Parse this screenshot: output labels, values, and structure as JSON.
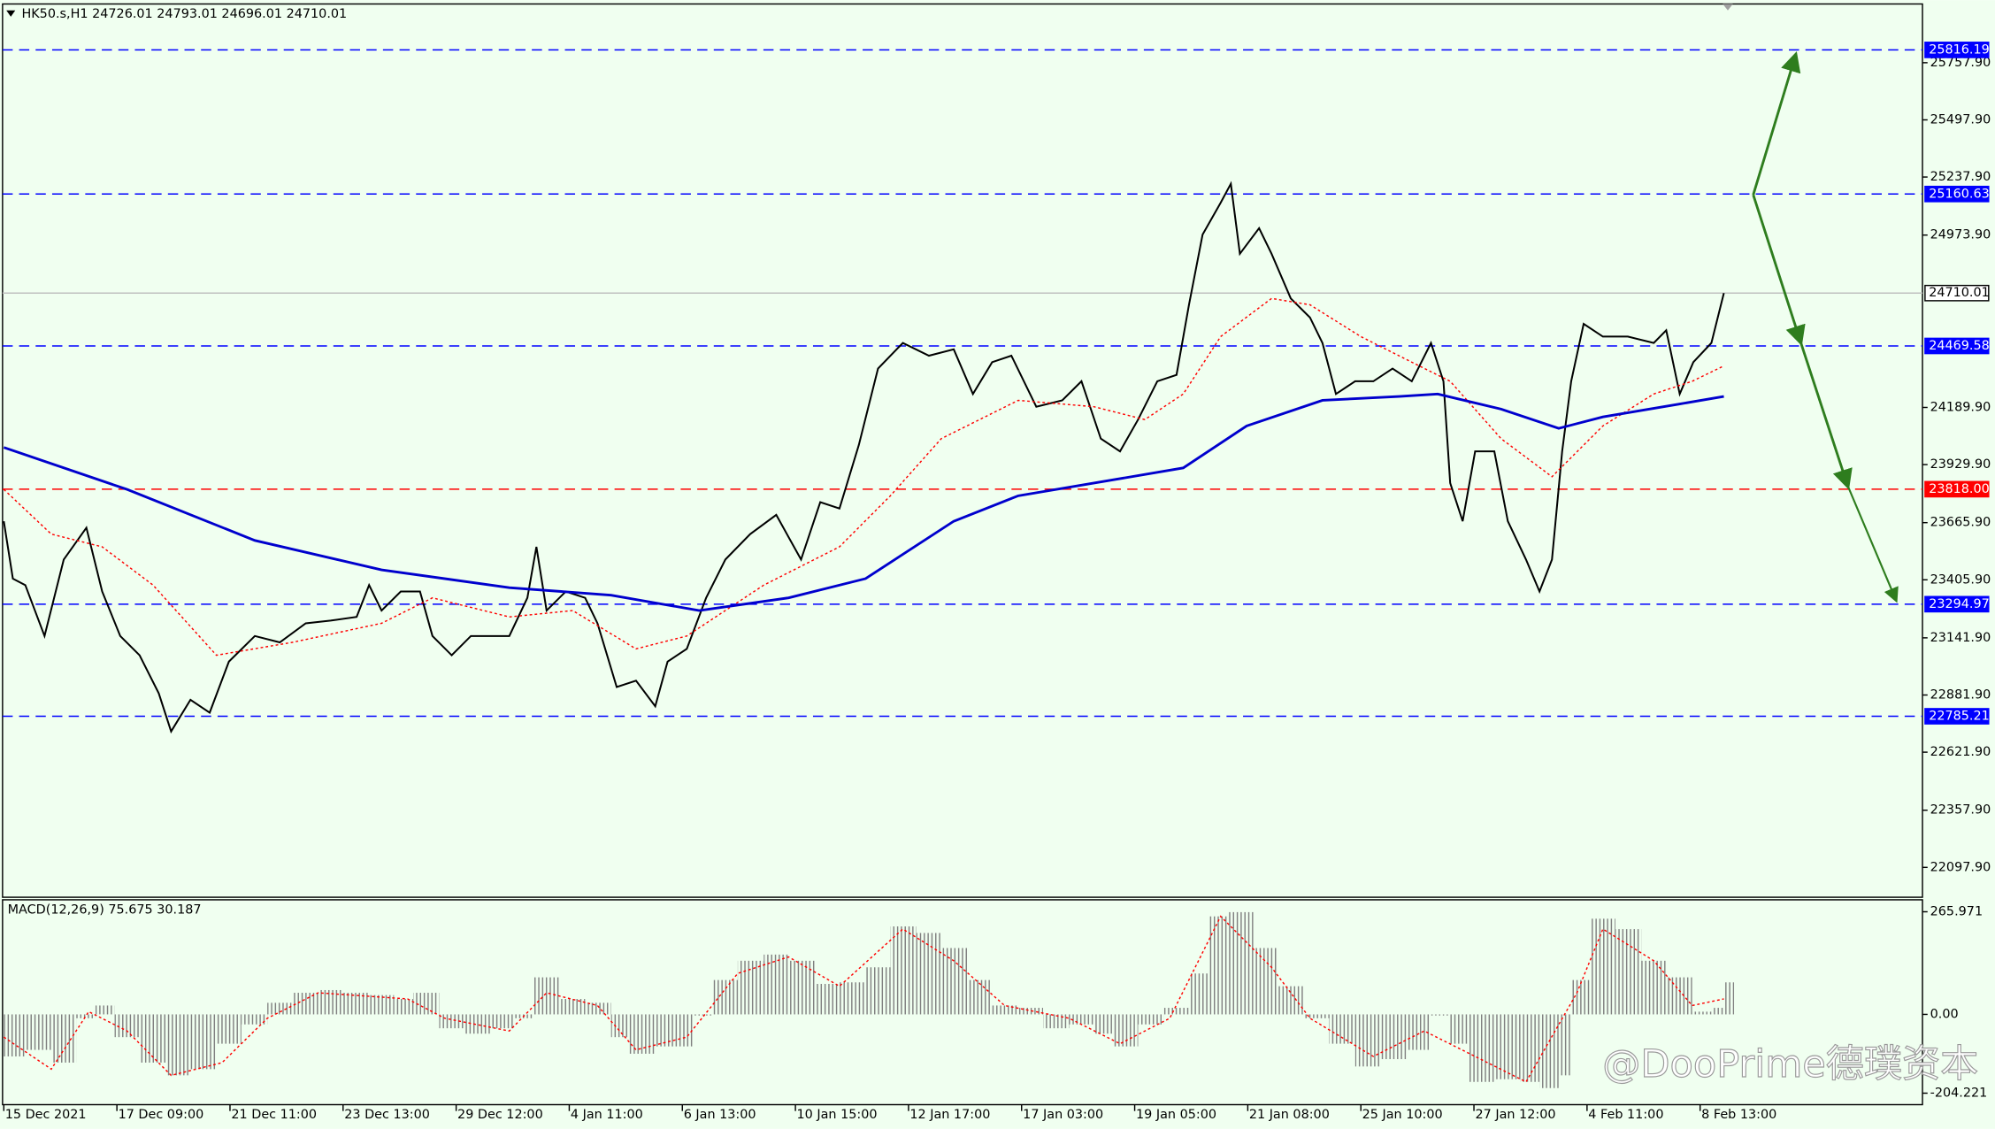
{
  "chart_data": [
    {
      "type": "line",
      "title": "HK50.s,H1  24726.01 24793.01 24696.01 24710.01",
      "xlim": [
        0,
        17
      ],
      "xticks": [
        {
          "value": 0,
          "label": "15 Dec 2021"
        },
        {
          "value": 1,
          "label": "17 Dec 09:00"
        },
        {
          "value": 2,
          "label": "21 Dec 11:00"
        },
        {
          "value": 3,
          "label": "23 Dec 13:00"
        },
        {
          "value": 4,
          "label": "29 Dec 12:00"
        },
        {
          "value": 5,
          "label": "4 Jan 11:00"
        },
        {
          "value": 6,
          "label": "6 Jan 13:00"
        },
        {
          "value": 7,
          "label": "10 Jan 15:00"
        },
        {
          "value": 8,
          "label": "12 Jan 17:00"
        },
        {
          "value": 9,
          "label": "17 Jan 03:00"
        },
        {
          "value": 10,
          "label": "19 Jan 05:00"
        },
        {
          "value": 11,
          "label": "21 Jan 08:00"
        },
        {
          "value": 12,
          "label": "25 Jan 10:00"
        },
        {
          "value": 13,
          "label": "27 Jan 12:00"
        },
        {
          "value": 14,
          "label": "4 Feb 11:00"
        },
        {
          "value": 15,
          "label": "8 Feb 13:00"
        }
      ],
      "ylim": [
        21962,
        26025
      ],
      "yticks": [
        {
          "value": 25757.9,
          "label": "25757.90"
        },
        {
          "value": 25497.9,
          "label": "25497.90"
        },
        {
          "value": 25237.9,
          "label": "25237.90"
        },
        {
          "value": 24973.9,
          "label": "24973.90"
        },
        {
          "value": 24189.9,
          "label": "24189.90"
        },
        {
          "value": 23929.9,
          "label": "23929.90"
        },
        {
          "value": 23665.9,
          "label": "23665.90"
        },
        {
          "value": 23405.9,
          "label": "23405.90"
        },
        {
          "value": 23141.9,
          "label": "23141.90"
        },
        {
          "value": 22881.9,
          "label": "22881.90"
        },
        {
          "value": 22621.9,
          "label": "22621.90"
        },
        {
          "value": 22357.9,
          "label": "22357.90"
        },
        {
          "value": 22097.9,
          "label": "22097.90"
        }
      ],
      "levels": [
        {
          "value": 25816.19,
          "color": "#0000ff",
          "style": "dashed"
        },
        {
          "value": 25160.63,
          "color": "#0000ff",
          "style": "dashed"
        },
        {
          "value": 24710.01,
          "color": "#c0c0c0",
          "style": "solid"
        },
        {
          "value": 24469.58,
          "color": "#0000ff",
          "style": "dashed"
        },
        {
          "value": 23818,
          "label": "23818.00",
          "color": "#ff0000",
          "style": "dashed"
        },
        {
          "value": 23294.97,
          "color": "#0000ff",
          "style": "dashed"
        },
        {
          "value": 22785.21,
          "color": "#0000ff",
          "style": "dashed"
        }
      ],
      "series": [
        {
          "color": "#000000",
          "style": "solid",
          "width": 1.4,
          "x": [
            0,
            0.08,
            0.19,
            0.36,
            0.53,
            0.73,
            0.87,
            1.03,
            1.2,
            1.37,
            1.48,
            1.65,
            1.82,
            1.99,
            2.22,
            2.44,
            2.67,
            2.89,
            3.12,
            3.23,
            3.34,
            3.51,
            3.68,
            3.79,
            3.96,
            4.13,
            4.3,
            4.47,
            4.63,
            4.71,
            4.8,
            4.97,
            5.14,
            5.25,
            5.42,
            5.59,
            5.76,
            5.87,
            6.04,
            6.21,
            6.38,
            6.6,
            6.83,
            7.05,
            7.22,
            7.39,
            7.56,
            7.73,
            7.95,
            8.18,
            8.4,
            8.57,
            8.74,
            8.91,
            9.13,
            9.36,
            9.53,
            9.7,
            9.87,
            10.03,
            10.2,
            10.37,
            10.48,
            10.6,
            10.76,
            10.85,
            10.93,
            11.1,
            11.21,
            11.38,
            11.55,
            11.66,
            11.78,
            11.95,
            12.11,
            12.28,
            12.45,
            12.62,
            12.73,
            12.79,
            12.9,
            13.01,
            13.18,
            13.3,
            13.46,
            13.58,
            13.69,
            13.78,
            13.86,
            13.97,
            14.14,
            14.36,
            14.59,
            14.7,
            14.82,
            14.94,
            15.1,
            15.21
          ],
          "values": [
            23672,
            23411,
            23382,
            23150,
            23498,
            23643,
            23353,
            23150,
            23063,
            22889,
            22716,
            22860,
            22802,
            23034,
            23150,
            23121,
            23208,
            23220,
            23237,
            23382,
            23266,
            23353,
            23353,
            23150,
            23063,
            23150,
            23150,
            23150,
            23324,
            23556,
            23266,
            23353,
            23324,
            23208,
            22918,
            22947,
            22831,
            23034,
            23092,
            23324,
            23498,
            23614,
            23701,
            23498,
            23759,
            23730,
            24019,
            24367,
            24483,
            24425,
            24454,
            24251,
            24396,
            24425,
            24193,
            24222,
            24309,
            24048,
            23990,
            24135,
            24309,
            24338,
            24657,
            24976,
            25121,
            25207,
            24889,
            25005,
            24889,
            24686,
            24599,
            24483,
            24251,
            24309,
            24309,
            24367,
            24309,
            24483,
            24309,
            23846,
            23672,
            23990,
            23990,
            23672,
            23498,
            23353,
            23498,
            23990,
            24309,
            24570,
            24512,
            24512,
            24483,
            24541,
            24251,
            24396,
            24483,
            24710
          ]
        },
        {
          "color": "#ff0000",
          "style": "dotted",
          "width": 1,
          "x": [
            0,
            0.42,
            0.87,
            1.32,
            1.88,
            2.55,
            3.34,
            3.79,
            4.47,
            5.03,
            5.59,
            6.04,
            6.72,
            7.39,
            7.84,
            8.29,
            8.97,
            9.64,
            10.09,
            10.43,
            10.76,
            11.21,
            11.55,
            12,
            12.45,
            12.79,
            13.24,
            13.69,
            14.14,
            14.59,
            14.93,
            15.21
          ],
          "values": [
            23817,
            23614,
            23556,
            23382,
            23063,
            23121,
            23208,
            23324,
            23237,
            23266,
            23092,
            23150,
            23382,
            23556,
            23788,
            24048,
            24222,
            24193,
            24135,
            24251,
            24512,
            24686,
            24657,
            24512,
            24396,
            24309,
            24048,
            23875,
            24106,
            24251,
            24309,
            24379
          ]
        },
        {
          "color": "#0000cd",
          "style": "solid",
          "width": 2,
          "x": [
            0,
            1.09,
            2.22,
            3.34,
            4.47,
            5.37,
            6.15,
            6.94,
            7.62,
            8.4,
            8.97,
            9.64,
            10.43,
            10.99,
            11.66,
            12.34,
            12.68,
            13.24,
            13.75,
            14.14,
            14.81,
            15.21
          ],
          "values": [
            24008,
            23817,
            23585,
            23451,
            23370,
            23336,
            23266,
            23324,
            23411,
            23672,
            23788,
            23846,
            23915,
            24106,
            24222,
            24240,
            24251,
            24182,
            24095,
            24147,
            24205,
            24240
          ]
        }
      ]
    },
    {
      "type": "bar",
      "title": "MACD(12,26,9) 75.675 30.187",
      "xlim": [
        0,
        17
      ],
      "ylim": [
        -234,
        297
      ],
      "yticks": [
        265.971,
        {
          "value": 0,
          "label": "0.00"
        },
        -204.221
      ],
      "series": [
        {
          "color": "#808080",
          "style": "histogram",
          "x": [
            0,
            0.19,
            0.42,
            0.64,
            0.81,
            0.98,
            1.2,
            1.43,
            1.65,
            1.88,
            2.1,
            2.33,
            2.55,
            2.78,
            3,
            3.23,
            3.45,
            3.62,
            3.85,
            4.07,
            4.3,
            4.52,
            4.69,
            4.92,
            5.14,
            5.37,
            5.53,
            5.76,
            5.93,
            6.1,
            6.27,
            6.49,
            6.72,
            6.94,
            7.17,
            7.39,
            7.62,
            7.84,
            8.07,
            8.29,
            8.52,
            8.74,
            8.97,
            9.19,
            9.42,
            9.64,
            9.81,
            10.03,
            10.26,
            10.48,
            10.65,
            10.82,
            11.05,
            11.27,
            11.5,
            11.72,
            11.95,
            12.17,
            12.4,
            12.62,
            12.79,
            12.96,
            13.18,
            13.41,
            13.58,
            13.75,
            13.86,
            14.03,
            14.25,
            14.48,
            14.7,
            14.93,
            15.1,
            15.21
          ],
          "values": [
            -109,
            -92,
            -125,
            -10,
            23,
            -59,
            -125,
            -158,
            -142,
            -76,
            -26,
            30,
            56,
            63,
            56,
            50,
            40,
            56,
            -36,
            -50,
            -36,
            -10,
            96,
            40,
            30,
            -59,
            -102,
            -83,
            -83,
            -3,
            89,
            139,
            155,
            139,
            79,
            83,
            122,
            228,
            211,
            172,
            89,
            23,
            17,
            -36,
            -26,
            -50,
            -83,
            -26,
            17,
            106,
            254,
            265,
            172,
            73,
            -10,
            -76,
            -135,
            -116,
            -92,
            -3,
            -76,
            -175,
            -168,
            -175,
            -191,
            -158,
            89,
            248,
            221,
            139,
            96,
            7,
            17,
            83
          ]
        },
        {
          "color": "#ff0000",
          "style": "dotted",
          "width": 1,
          "x": [
            0,
            0.42,
            0.75,
            1.09,
            1.48,
            1.93,
            2.33,
            2.78,
            3.57,
            3.9,
            4.47,
            4.8,
            5.25,
            5.59,
            6.04,
            6.49,
            6.94,
            7.39,
            7.95,
            8.4,
            8.85,
            9.42,
            9.87,
            10.31,
            10.76,
            11.21,
            11.55,
            12.11,
            12.56,
            13.01,
            13.46,
            13.91,
            14.14,
            14.59,
            14.93,
            15.21
          ],
          "values": [
            -59,
            -142,
            7,
            -43,
            -158,
            -125,
            -10,
            56,
            40,
            -10,
            -43,
            56,
            23,
            -92,
            -59,
            106,
            149,
            73,
            221,
            139,
            23,
            -10,
            -76,
            -10,
            254,
            122,
            -10,
            -109,
            -43,
            -109,
            -175,
            56,
            221,
            139,
            23,
            40
          ]
        }
      ]
    }
  ],
  "watermark": "@DooPrime德璞资本"
}
